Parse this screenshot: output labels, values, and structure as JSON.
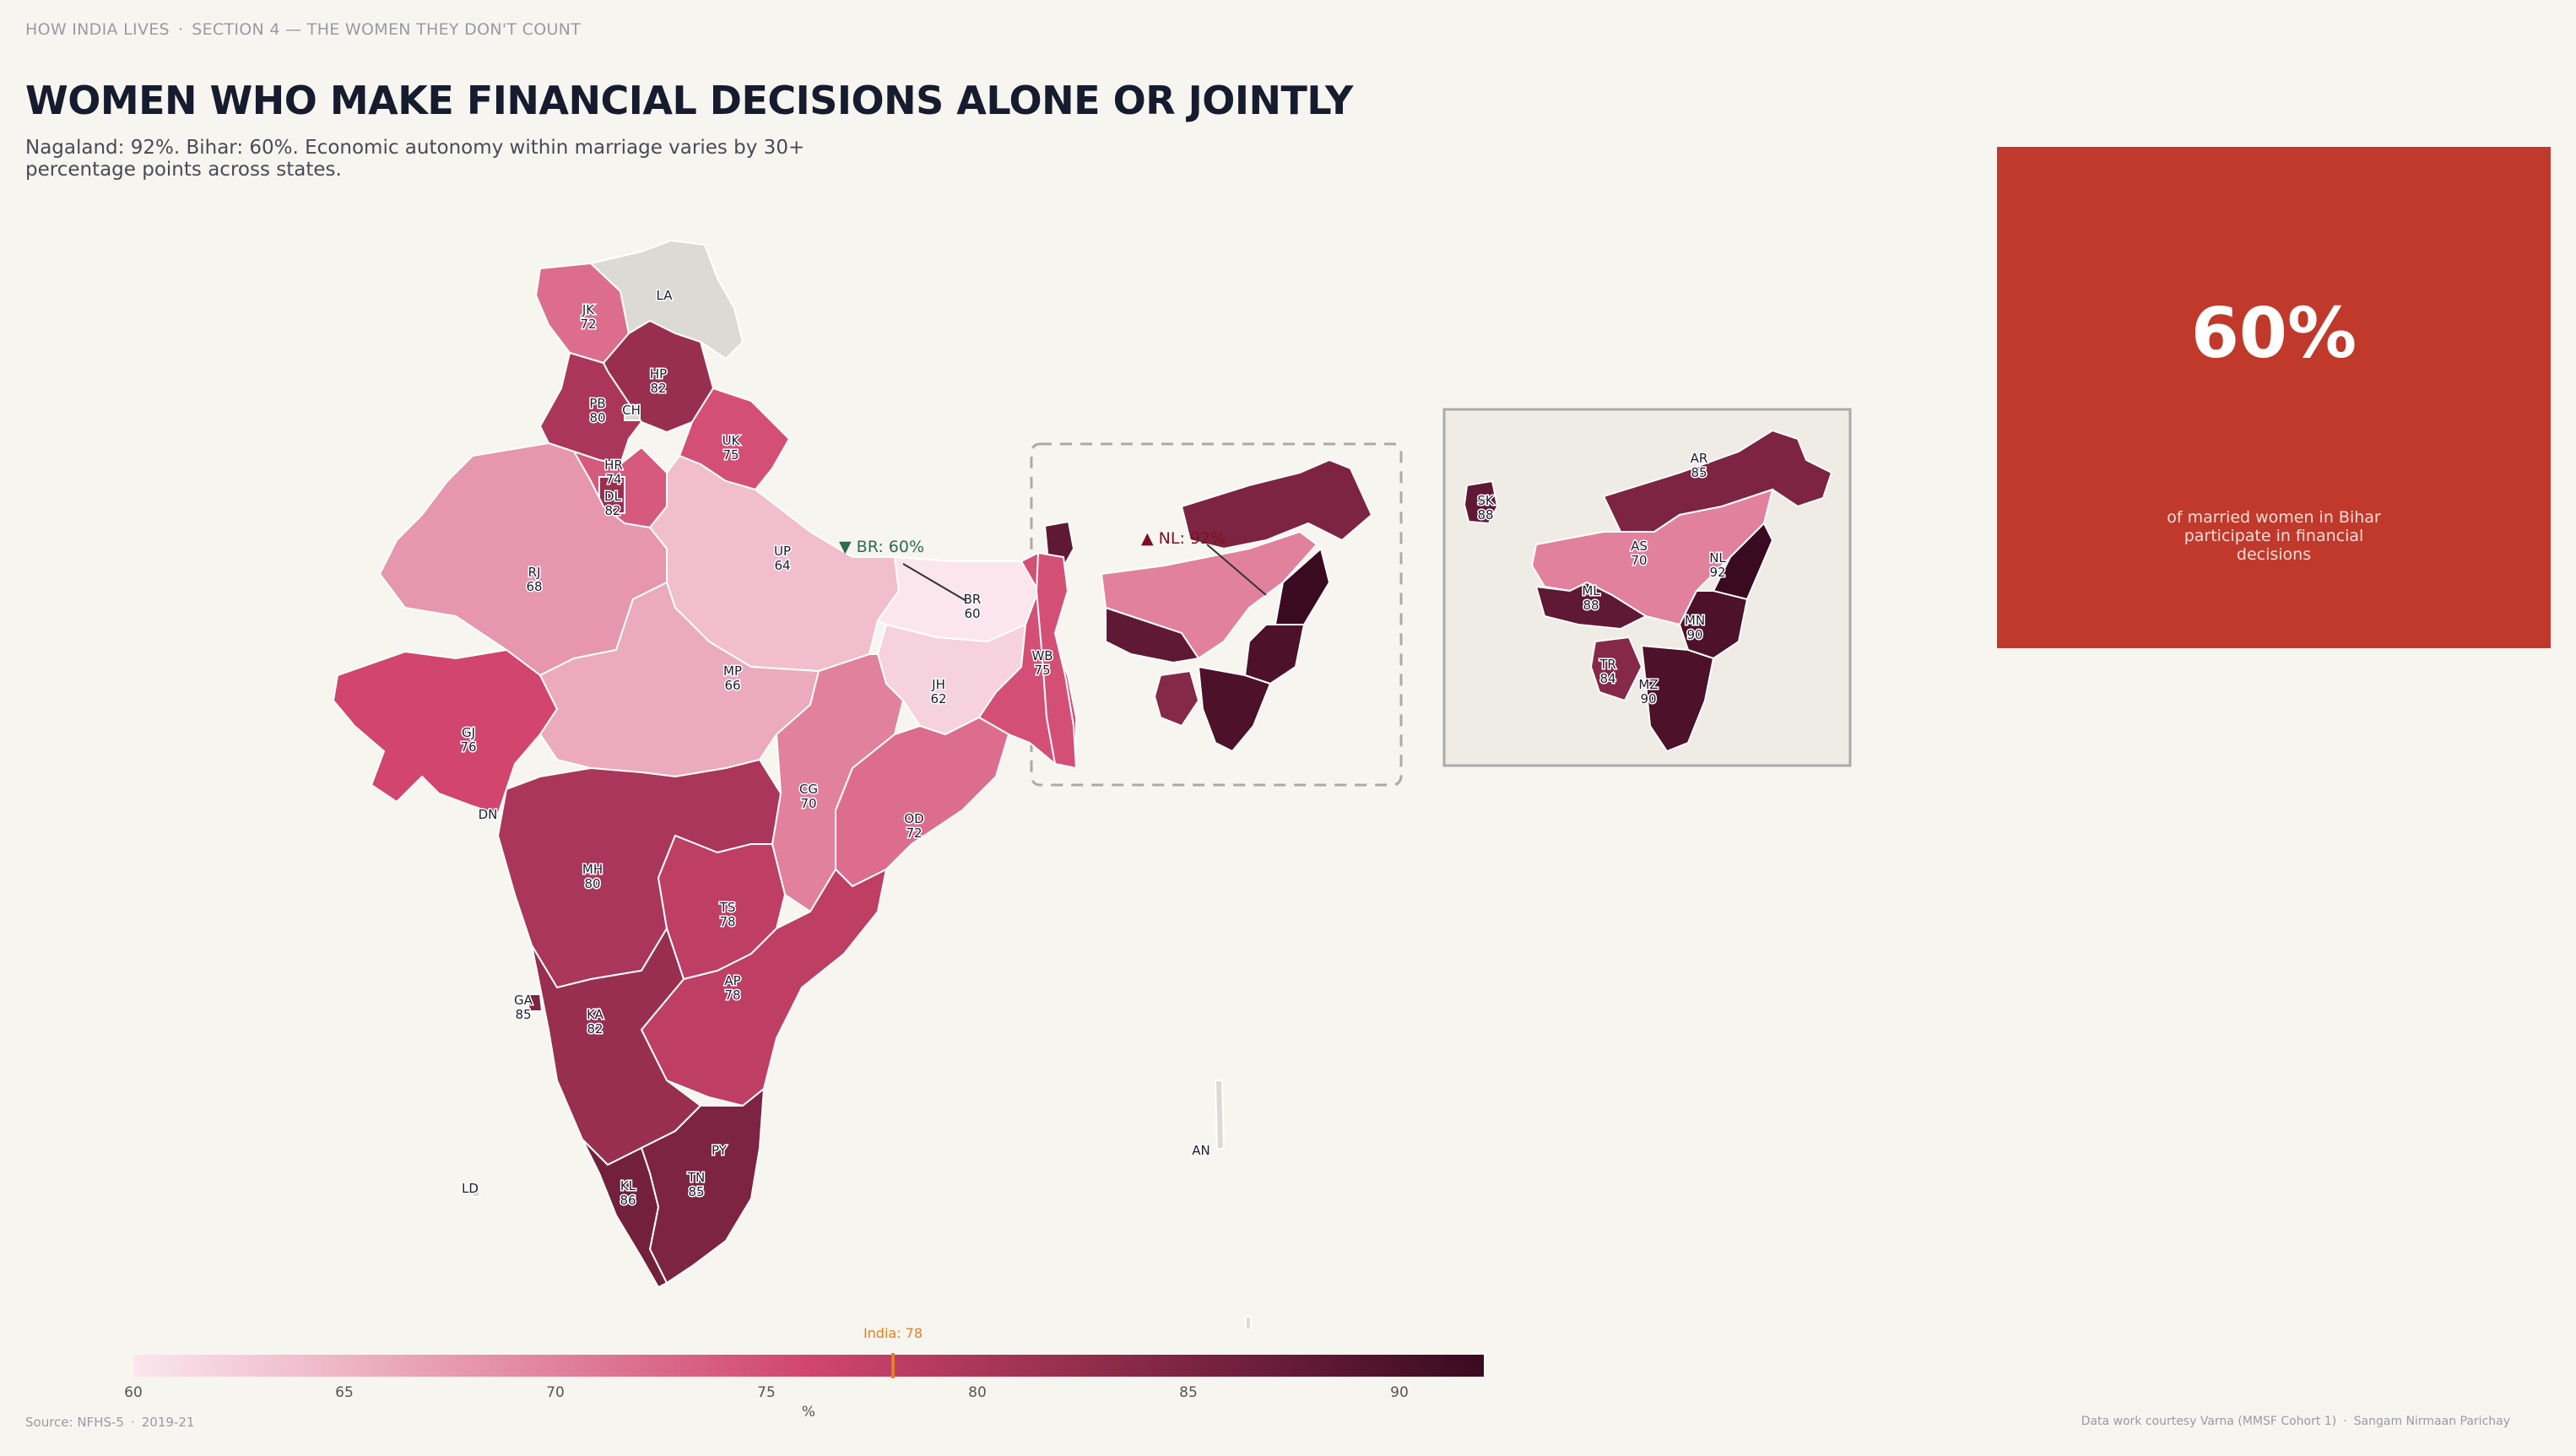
{
  "header": {
    "kicker_series": "HOW INDIA LIVES",
    "kicker_section": "SECTION 4 — THE WOMEN THEY DON'T COUNT",
    "title": "WOMEN WHO MAKE FINANCIAL DECISIONS ALONE OR JOINTLY",
    "subtitle": "Nagaland: 92%. Bihar: 60%. Economic autonomy within marriage varies by 30+ percentage points across states."
  },
  "map": {
    "states": [
      {
        "code": "JK",
        "value": 72
      },
      {
        "code": "LA",
        "value": null
      },
      {
        "code": "HP",
        "value": 82
      },
      {
        "code": "PB",
        "value": 80
      },
      {
        "code": "CH",
        "value": null
      },
      {
        "code": "UK",
        "value": 75
      },
      {
        "code": "HR",
        "value": 74
      },
      {
        "code": "DL",
        "value": 82
      },
      {
        "code": "RJ",
        "value": 68
      },
      {
        "code": "UP",
        "value": 64
      },
      {
        "code": "BR",
        "value": 60
      },
      {
        "code": "GJ",
        "value": 76
      },
      {
        "code": "MP",
        "value": 66
      },
      {
        "code": "JH",
        "value": 62
      },
      {
        "code": "WB",
        "value": 75
      },
      {
        "code": "CG",
        "value": 70
      },
      {
        "code": "OD",
        "value": 72
      },
      {
        "code": "DN",
        "value": null
      },
      {
        "code": "MH",
        "value": 80
      },
      {
        "code": "TS",
        "value": 78
      },
      {
        "code": "AP",
        "value": 78
      },
      {
        "code": "GA",
        "value": 85
      },
      {
        "code": "KA",
        "value": 82
      },
      {
        "code": "PY",
        "value": null
      },
      {
        "code": "TN",
        "value": 85
      },
      {
        "code": "KL",
        "value": 86
      },
      {
        "code": "LD",
        "value": null
      },
      {
        "code": "AN",
        "value": null
      }
    ],
    "inset_states": [
      {
        "code": "SK",
        "value": "88"
      },
      {
        "code": "AR",
        "value": 85
      },
      {
        "code": "AS",
        "value": 70
      },
      {
        "code": "NL",
        "value": 92
      },
      {
        "code": "ML",
        "value": 88
      },
      {
        "code": "MN",
        "value": 90
      },
      {
        "code": "TR",
        "value": 84
      },
      {
        "code": "MZ",
        "value": 90
      }
    ],
    "callouts": {
      "low": {
        "symbol": "▼",
        "text": "BR: 60%",
        "color": "#2e6b4f"
      },
      "high": {
        "symbol": "▲",
        "text": "NL: 92%",
        "color": "#7a1020"
      }
    }
  },
  "legend": {
    "min": 60,
    "max": 92,
    "ticks": [
      "60",
      "65",
      "70",
      "75",
      "80",
      "85",
      "90"
    ],
    "unit": "%",
    "marker_label": "India: 78",
    "marker_value": 78,
    "color_low": "#fbe6ee",
    "color_mid": "#d1456e",
    "color_high": "#3a0a20",
    "marker_color": "#e67e22"
  },
  "stat_card": {
    "value": "60%",
    "caption": "of married women in Bihar participate in financial decisions",
    "color": "#c0392b"
  },
  "footer": {
    "source": "Source: NFHS-5",
    "year": "2019-21",
    "credit": "Data work courtesy Varna (MMSF Cohort 1)",
    "publisher": "Sangam Nirmaan Parichay"
  }
}
